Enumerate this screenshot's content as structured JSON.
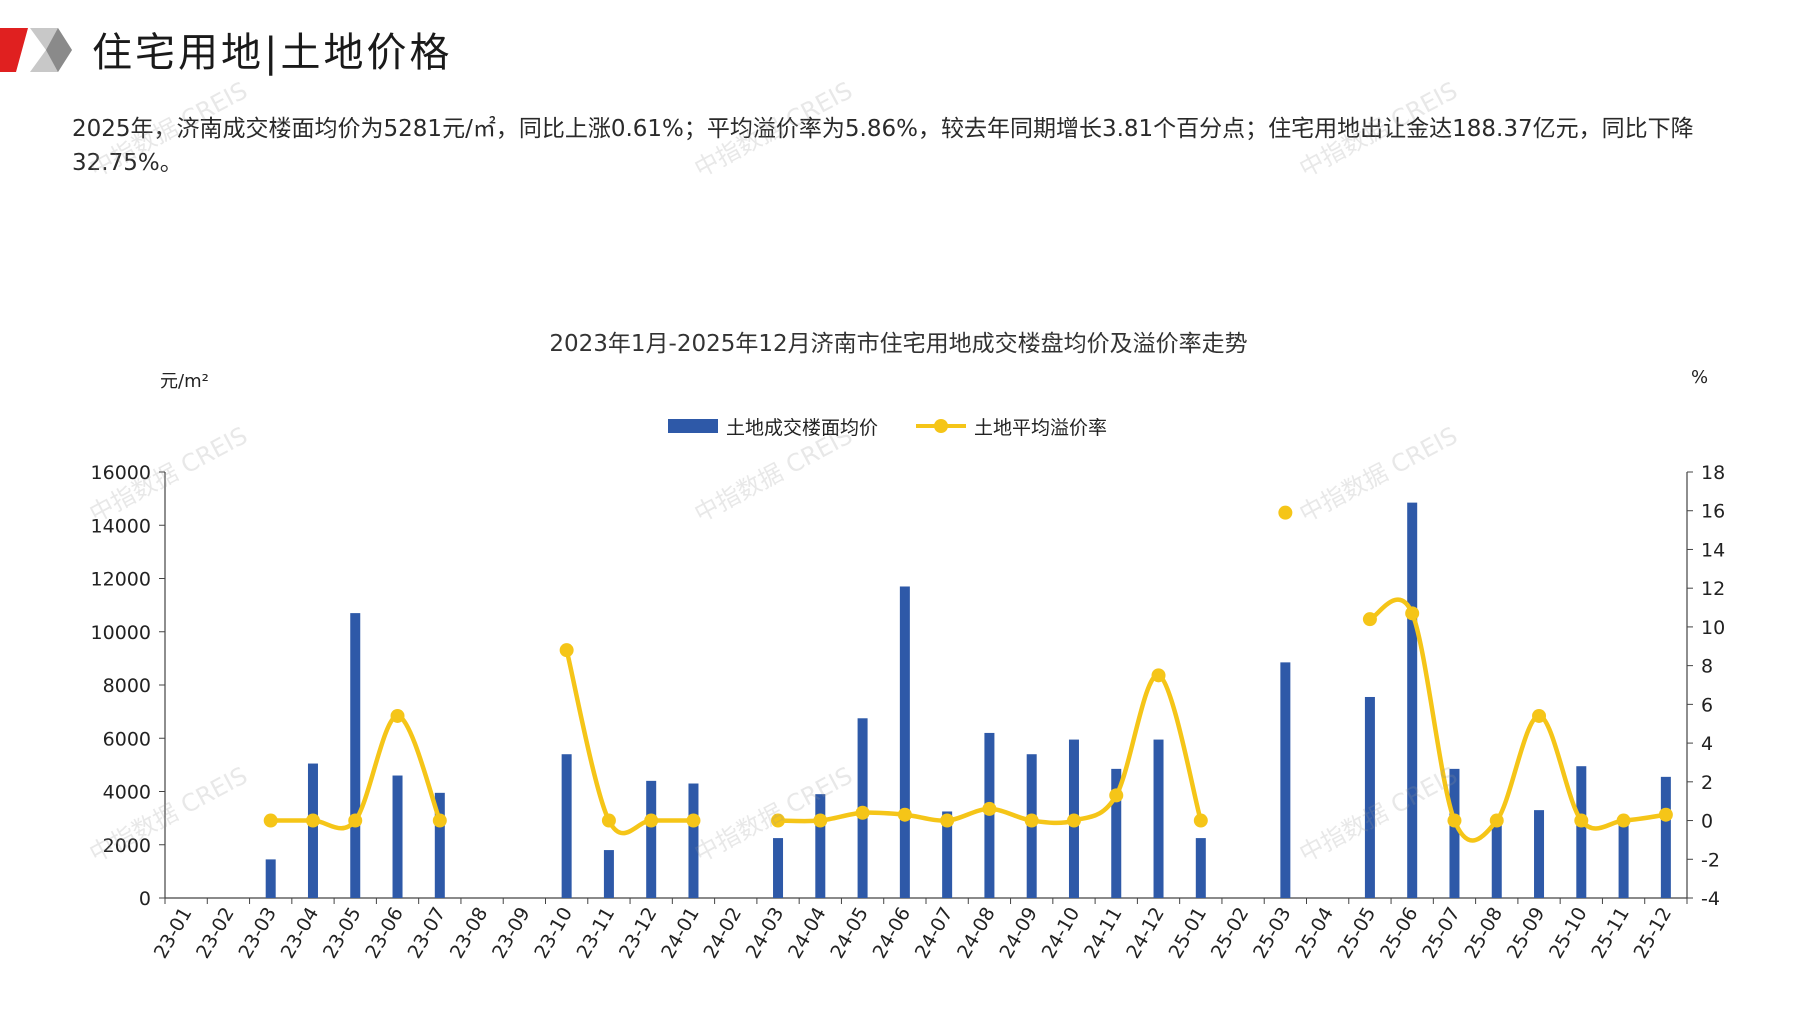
{
  "header": {
    "title": "住宅用地|土地价格"
  },
  "summary": "2025年，济南成交楼面均价为5281元/㎡，同比上涨0.61%；平均溢价率为5.86%，较去年同期增长3.81个百分点；住宅用地出让金达188.37亿元，同比下降32.75%。",
  "watermark_text": "中指数据 CREIS",
  "colors": {
    "bar": "#2e59a8",
    "line": "#f5c518",
    "brand_red": "#e02020"
  },
  "chart_data": {
    "type": "bar",
    "title": "2023年1月-2025年12月济南市住宅用地成交楼盘均价及溢价率走势",
    "ylabel_left": "元/m²",
    "ylabel_right": "%",
    "ylim_left": [
      0,
      16000
    ],
    "ylim_right": [
      -4,
      18
    ],
    "yticks_left": [
      0,
      2000,
      4000,
      6000,
      8000,
      10000,
      12000,
      14000,
      16000
    ],
    "yticks_right": [
      -4,
      -2,
      0,
      2,
      4,
      6,
      8,
      10,
      12,
      14,
      16,
      18
    ],
    "legend_position": "top-center",
    "categories": [
      "23-01",
      "23-02",
      "23-03",
      "23-04",
      "23-05",
      "23-06",
      "23-07",
      "23-08",
      "23-09",
      "23-10",
      "23-11",
      "23-12",
      "24-01",
      "24-02",
      "24-03",
      "24-04",
      "24-05",
      "24-06",
      "24-07",
      "24-08",
      "24-09",
      "24-10",
      "24-11",
      "24-12",
      "25-01",
      "25-02",
      "25-03",
      "25-04",
      "25-05",
      "25-06",
      "25-07",
      "25-08",
      "25-09",
      "25-10",
      "25-11",
      "25-12"
    ],
    "series": [
      {
        "name": "土地成交楼面均价",
        "kind": "bar",
        "axis": "left",
        "values": [
          null,
          null,
          1450,
          5050,
          10700,
          4600,
          3950,
          null,
          null,
          5400,
          1800,
          4400,
          4300,
          null,
          2250,
          3900,
          6750,
          11700,
          3250,
          6200,
          5400,
          5950,
          4850,
          5950,
          2250,
          null,
          8850,
          null,
          7550,
          14850,
          4850,
          3000,
          3300,
          4950,
          3000,
          4550
        ]
      },
      {
        "name": "土地平均溢价率",
        "kind": "line",
        "axis": "right",
        "values": [
          null,
          null,
          0,
          0,
          0,
          5.4,
          0,
          null,
          null,
          8.8,
          0,
          0,
          0,
          null,
          0,
          0,
          0.4,
          0.3,
          0,
          0.6,
          0,
          0,
          1.3,
          7.5,
          0,
          null,
          15.9,
          null,
          10.4,
          10.7,
          0,
          0,
          5.4,
          0,
          0,
          0.3
        ]
      }
    ]
  }
}
